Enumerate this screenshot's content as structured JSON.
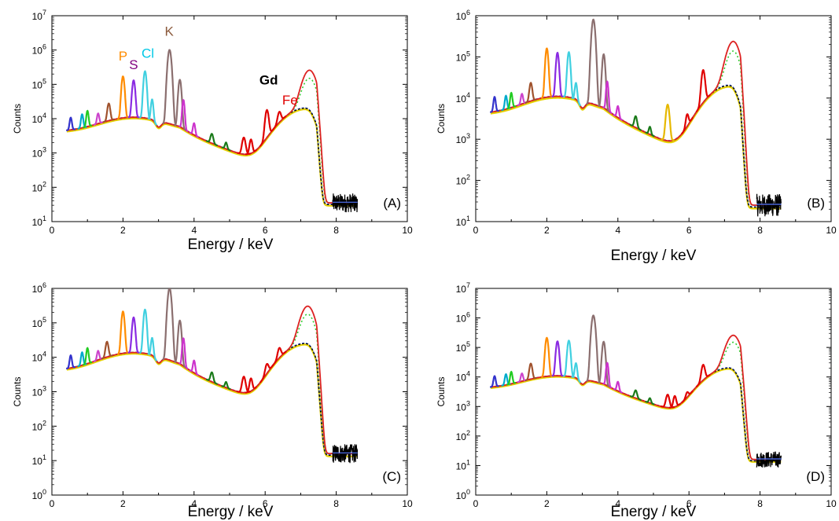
{
  "chart_data": [
    {
      "panel": "(A)",
      "type": "line",
      "xlabel": "Energy / keV",
      "ylabel": "Counts",
      "xlim": [
        0,
        10
      ],
      "ylim_log10": [
        1,
        7
      ],
      "x_ticks": [
        "0",
        "2",
        "4",
        "6",
        "8",
        "10"
      ],
      "y_ticks": [
        {
          "base": "10",
          "exp": "1"
        },
        {
          "base": "10",
          "exp": "2"
        },
        {
          "base": "10",
          "exp": "3"
        },
        {
          "base": "10",
          "exp": "4"
        },
        {
          "base": "10",
          "exp": "5"
        },
        {
          "base": "10",
          "exp": "6"
        },
        {
          "base": "10",
          "exp": "7"
        }
      ],
      "scale": "log",
      "grid": false,
      "element_labels": [
        {
          "text": "P",
          "x": 2.0,
          "y": 500000,
          "color": "#ff8c00"
        },
        {
          "text": "S",
          "x": 2.3,
          "y": 280000,
          "color": "#800080"
        },
        {
          "text": "Cl",
          "x": 2.7,
          "y": 600000,
          "color": "#00c8e6"
        },
        {
          "text": "K",
          "x": 3.3,
          "y": 2600000,
          "color": "#8b5a3c"
        },
        {
          "text": "Gd",
          "x": 6.1,
          "y": 100000,
          "color": "#000000",
          "bold": true
        },
        {
          "text": "Fe",
          "x": 6.7,
          "y": 26000,
          "color": "#e00000"
        }
      ],
      "peaks": [
        {
          "x": 0.53,
          "h": 6000,
          "w": 0.04,
          "color": "#3333cc"
        },
        {
          "x": 0.85,
          "h": 8000,
          "w": 0.04,
          "color": "#00aacc"
        },
        {
          "x": 1.0,
          "h": 11000,
          "w": 0.04,
          "color": "#22cc22"
        },
        {
          "x": 1.3,
          "h": 7000,
          "w": 0.04,
          "color": "#cc44cc"
        },
        {
          "x": 1.6,
          "h": 19000,
          "w": 0.05,
          "color": "#a0522d"
        },
        {
          "x": 2.0,
          "h": 160000,
          "w": 0.05,
          "color": "#ff8c00"
        },
        {
          "x": 2.3,
          "h": 120000,
          "w": 0.05,
          "color": "#8a2be2"
        },
        {
          "x": 2.62,
          "h": 230000,
          "w": 0.05,
          "color": "#40d0e0"
        },
        {
          "x": 2.82,
          "h": 27000,
          "w": 0.04,
          "color": "#40d0e0"
        },
        {
          "x": 3.31,
          "h": 1000000,
          "w": 0.06,
          "color": "#8b6f6f"
        },
        {
          "x": 3.6,
          "h": 130000,
          "w": 0.05,
          "color": "#8b6f6f"
        },
        {
          "x": 3.7,
          "h": 30000,
          "w": 0.04,
          "color": "#cc33cc"
        },
        {
          "x": 4.0,
          "h": 4000,
          "w": 0.04,
          "color": "#cc33cc"
        },
        {
          "x": 4.5,
          "h": 1700,
          "w": 0.05,
          "color": "#1a7a1a"
        },
        {
          "x": 4.9,
          "h": 700,
          "w": 0.04,
          "color": "#1a7a1a"
        },
        {
          "x": 5.4,
          "h": 1900,
          "w": 0.06,
          "color": "#e00000"
        },
        {
          "x": 5.6,
          "h": 1500,
          "w": 0.05,
          "color": "#e00000"
        },
        {
          "x": 6.05,
          "h": 15000,
          "w": 0.06,
          "color": "#e00000"
        },
        {
          "x": 6.4,
          "h": 8000,
          "w": 0.06,
          "color": "#e00000"
        }
      ],
      "edge_peak": {
        "x": 7.25,
        "h": 240000
      },
      "background_max": 20000,
      "noise_level": 35
    },
    {
      "panel": "(B)",
      "type": "line",
      "xlabel": "Energy / keV",
      "ylabel": "Counts",
      "xlim": [
        0,
        10
      ],
      "ylim_log10": [
        1,
        6
      ],
      "x_ticks": [
        "0",
        "2",
        "4",
        "6",
        "8",
        "10"
      ],
      "y_ticks": [
        {
          "base": "10",
          "exp": "1"
        },
        {
          "base": "10",
          "exp": "2"
        },
        {
          "base": "10",
          "exp": "3"
        },
        {
          "base": "10",
          "exp": "4"
        },
        {
          "base": "10",
          "exp": "5"
        },
        {
          "base": "10",
          "exp": "6"
        }
      ],
      "scale": "log",
      "grid": false,
      "element_labels": [],
      "peaks": [
        {
          "x": 0.53,
          "h": 6000,
          "w": 0.04,
          "color": "#3333cc"
        },
        {
          "x": 0.85,
          "h": 6000,
          "w": 0.04,
          "color": "#00aacc"
        },
        {
          "x": 1.0,
          "h": 7500,
          "w": 0.04,
          "color": "#22cc22"
        },
        {
          "x": 1.3,
          "h": 5500,
          "w": 0.04,
          "color": "#cc44cc"
        },
        {
          "x": 1.55,
          "h": 15000,
          "w": 0.05,
          "color": "#a0522d"
        },
        {
          "x": 2.0,
          "h": 150000,
          "w": 0.05,
          "color": "#ff8c00"
        },
        {
          "x": 2.3,
          "h": 115000,
          "w": 0.05,
          "color": "#8a2be2"
        },
        {
          "x": 2.62,
          "h": 120000,
          "w": 0.05,
          "color": "#40d0e0"
        },
        {
          "x": 2.82,
          "h": 14000,
          "w": 0.04,
          "color": "#40d0e0"
        },
        {
          "x": 3.31,
          "h": 800000,
          "w": 0.06,
          "color": "#8b6f6f"
        },
        {
          "x": 3.6,
          "h": 110000,
          "w": 0.05,
          "color": "#8b6f6f"
        },
        {
          "x": 3.7,
          "h": 20000,
          "w": 0.04,
          "color": "#cc33cc"
        },
        {
          "x": 4.0,
          "h": 3000,
          "w": 0.04,
          "color": "#cc33cc"
        },
        {
          "x": 4.5,
          "h": 1700,
          "w": 0.05,
          "color": "#1a7a1a"
        },
        {
          "x": 4.9,
          "h": 700,
          "w": 0.04,
          "color": "#1a7a1a"
        },
        {
          "x": 5.4,
          "h": 6000,
          "w": 0.06,
          "color": "#e6b800"
        },
        {
          "x": 5.95,
          "h": 2000,
          "w": 0.05,
          "color": "#e00000"
        },
        {
          "x": 6.4,
          "h": 40000,
          "w": 0.06,
          "color": "#e00000"
        }
      ],
      "edge_peak": {
        "x": 7.25,
        "h": 220000
      },
      "background_max": 20000,
      "noise_level": 25
    },
    {
      "panel": "(C)",
      "type": "line",
      "xlabel": "Energy / keV",
      "ylabel": "Counts",
      "xlim": [
        0,
        10
      ],
      "ylim_log10": [
        0,
        6
      ],
      "x_ticks": [
        "0",
        "2",
        "4",
        "6",
        "8",
        "10"
      ],
      "y_ticks": [
        {
          "base": "10",
          "exp": "0"
        },
        {
          "base": "10",
          "exp": "1"
        },
        {
          "base": "10",
          "exp": "2"
        },
        {
          "base": "10",
          "exp": "3"
        },
        {
          "base": "10",
          "exp": "4"
        },
        {
          "base": "10",
          "exp": "5"
        },
        {
          "base": "10",
          "exp": "6"
        }
      ],
      "scale": "log",
      "grid": false,
      "element_labels": [],
      "peaks": [
        {
          "x": 0.53,
          "h": 6500,
          "w": 0.04,
          "color": "#3333cc"
        },
        {
          "x": 0.85,
          "h": 8000,
          "w": 0.04,
          "color": "#00aacc"
        },
        {
          "x": 1.0,
          "h": 12000,
          "w": 0.04,
          "color": "#22cc22"
        },
        {
          "x": 1.3,
          "h": 7000,
          "w": 0.04,
          "color": "#cc44cc"
        },
        {
          "x": 1.55,
          "h": 18000,
          "w": 0.05,
          "color": "#a0522d"
        },
        {
          "x": 2.0,
          "h": 200000,
          "w": 0.05,
          "color": "#ff8c00"
        },
        {
          "x": 2.3,
          "h": 130000,
          "w": 0.05,
          "color": "#8a2be2"
        },
        {
          "x": 2.62,
          "h": 230000,
          "w": 0.05,
          "color": "#40d0e0"
        },
        {
          "x": 2.82,
          "h": 25000,
          "w": 0.04,
          "color": "#40d0e0"
        },
        {
          "x": 3.31,
          "h": 1000000,
          "w": 0.06,
          "color": "#8b6f6f"
        },
        {
          "x": 3.6,
          "h": 110000,
          "w": 0.05,
          "color": "#8b6f6f"
        },
        {
          "x": 3.7,
          "h": 30000,
          "w": 0.04,
          "color": "#cc33cc"
        },
        {
          "x": 4.0,
          "h": 4500,
          "w": 0.04,
          "color": "#cc33cc"
        },
        {
          "x": 4.5,
          "h": 1700,
          "w": 0.05,
          "color": "#1a7a1a"
        },
        {
          "x": 4.9,
          "h": 600,
          "w": 0.04,
          "color": "#1a7a1a"
        },
        {
          "x": 5.4,
          "h": 1800,
          "w": 0.06,
          "color": "#e00000"
        },
        {
          "x": 5.6,
          "h": 1400,
          "w": 0.05,
          "color": "#e00000"
        },
        {
          "x": 6.05,
          "h": 3000,
          "w": 0.06,
          "color": "#e00000"
        },
        {
          "x": 6.4,
          "h": 9000,
          "w": 0.06,
          "color": "#e00000"
        }
      ],
      "edge_peak": {
        "x": 7.2,
        "h": 280000
      },
      "background_max": 25000,
      "noise_level": 16
    },
    {
      "panel": "(D)",
      "type": "line",
      "xlabel": "Energy / keV",
      "ylabel": "Counts",
      "xlim": [
        0,
        10
      ],
      "ylim_log10": [
        0,
        7
      ],
      "x_ticks": [
        "0",
        "2",
        "4",
        "6",
        "8",
        "10"
      ],
      "y_ticks": [
        {
          "base": "10",
          "exp": "0"
        },
        {
          "base": "10",
          "exp": "1"
        },
        {
          "base": "10",
          "exp": "2"
        },
        {
          "base": "10",
          "exp": "3"
        },
        {
          "base": "10",
          "exp": "4"
        },
        {
          "base": "10",
          "exp": "5"
        },
        {
          "base": "10",
          "exp": "6"
        },
        {
          "base": "10",
          "exp": "7"
        }
      ],
      "scale": "log",
      "grid": false,
      "element_labels": [],
      "peaks": [
        {
          "x": 0.53,
          "h": 6000,
          "w": 0.04,
          "color": "#3333cc"
        },
        {
          "x": 0.85,
          "h": 7000,
          "w": 0.04,
          "color": "#00aacc"
        },
        {
          "x": 1.0,
          "h": 9000,
          "w": 0.04,
          "color": "#22cc22"
        },
        {
          "x": 1.3,
          "h": 6000,
          "w": 0.04,
          "color": "#cc44cc"
        },
        {
          "x": 1.55,
          "h": 20000,
          "w": 0.05,
          "color": "#a0522d"
        },
        {
          "x": 2.0,
          "h": 200000,
          "w": 0.05,
          "color": "#ff8c00"
        },
        {
          "x": 2.3,
          "h": 150000,
          "w": 0.05,
          "color": "#8a2be2"
        },
        {
          "x": 2.62,
          "h": 160000,
          "w": 0.05,
          "color": "#40d0e0"
        },
        {
          "x": 2.82,
          "h": 20000,
          "w": 0.04,
          "color": "#40d0e0"
        },
        {
          "x": 3.31,
          "h": 1200000,
          "w": 0.06,
          "color": "#8b6f6f"
        },
        {
          "x": 3.6,
          "h": 150000,
          "w": 0.05,
          "color": "#8b6f6f"
        },
        {
          "x": 3.7,
          "h": 25000,
          "w": 0.04,
          "color": "#cc33cc"
        },
        {
          "x": 4.0,
          "h": 3500,
          "w": 0.04,
          "color": "#cc33cc"
        },
        {
          "x": 4.5,
          "h": 1600,
          "w": 0.05,
          "color": "#1a7a1a"
        },
        {
          "x": 4.9,
          "h": 600,
          "w": 0.04,
          "color": "#1a7a1a"
        },
        {
          "x": 5.4,
          "h": 1600,
          "w": 0.06,
          "color": "#e00000"
        },
        {
          "x": 5.6,
          "h": 1300,
          "w": 0.05,
          "color": "#e00000"
        },
        {
          "x": 5.95,
          "h": 1000,
          "w": 0.05,
          "color": "#e00000"
        },
        {
          "x": 6.4,
          "h": 18000,
          "w": 0.06,
          "color": "#e00000"
        }
      ],
      "edge_peak": {
        "x": 7.25,
        "h": 240000
      },
      "background_max": 20000,
      "noise_level": 16
    }
  ]
}
